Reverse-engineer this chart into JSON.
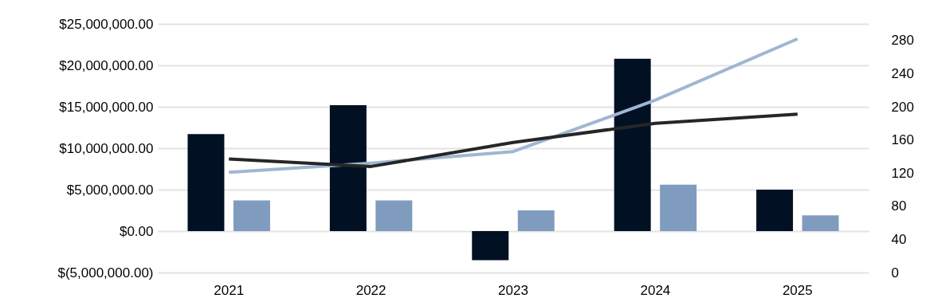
{
  "chart_data": {
    "type": "bar",
    "categories": [
      "2021",
      "2022",
      "2023",
      "2024",
      "2025"
    ],
    "series": [
      {
        "color": "#021024",
        "values": [
          11700000,
          15200000,
          -3500000,
          20800000,
          5000000
        ]
      },
      {
        "color": "#7f9cbf",
        "values": [
          3700000,
          3700000,
          2500000,
          5600000,
          1900000
        ]
      },
      {
        "type": "line",
        "axis": "y2",
        "color": "#a0b6d2",
        "values": [
          121,
          132,
          146,
          208,
          282
        ]
      },
      {
        "type": "line",
        "axis": "y2",
        "color": "#262626",
        "values": [
          137,
          128,
          157,
          180,
          191
        ]
      }
    ],
    "ylim": [
      -5000000,
      25000000
    ],
    "yticks": [
      {
        "value": -5000000,
        "label": "$(5,000,000.00)"
      },
      {
        "value": 0,
        "label": "$0.00"
      },
      {
        "value": 5000000,
        "label": "$5,000,000.00"
      },
      {
        "value": 10000000,
        "label": "$10,000,000.00"
      },
      {
        "value": 15000000,
        "label": "$15,000,000.00"
      },
      {
        "value": 20000000,
        "label": "$20,000,000.00"
      },
      {
        "value": 25000000,
        "label": "$25,000,000.00"
      }
    ],
    "y2lim": [
      0,
      300
    ],
    "y2ticks": [
      0,
      40,
      80,
      120,
      160,
      200,
      240,
      280
    ],
    "grid": "y",
    "line_style": "solid"
  }
}
